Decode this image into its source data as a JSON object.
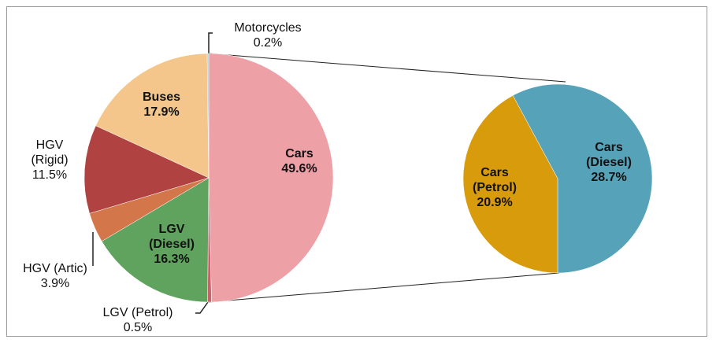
{
  "chart_data": [
    {
      "type": "pie",
      "categories": [
        "Cars",
        "LGV (Petrol)",
        "LGV (Diesel)",
        "HGV (Artic)",
        "HGV (Rigid)",
        "Buses",
        "Motorcycles"
      ],
      "values": [
        49.6,
        0.5,
        16.3,
        3.9,
        11.5,
        17.9,
        0.2
      ],
      "value_labels": [
        "49.6%",
        "0.5%",
        "16.3%",
        "3.9%",
        "11.5%",
        "17.9%",
        "0.2%"
      ],
      "colors": [
        "#eea0a7",
        "#c9636b",
        "#5fa35e",
        "#d3774b",
        "#b04242",
        "#f5c68c",
        "#a9cad8"
      ]
    },
    {
      "type": "pie",
      "categories": [
        "Cars (Diesel)",
        "Cars (Petrol)"
      ],
      "values": [
        28.7,
        20.9
      ],
      "value_labels": [
        "28.7%",
        "20.9%"
      ],
      "colors": [
        "#56a3b9",
        "#d89b0b"
      ]
    }
  ]
}
